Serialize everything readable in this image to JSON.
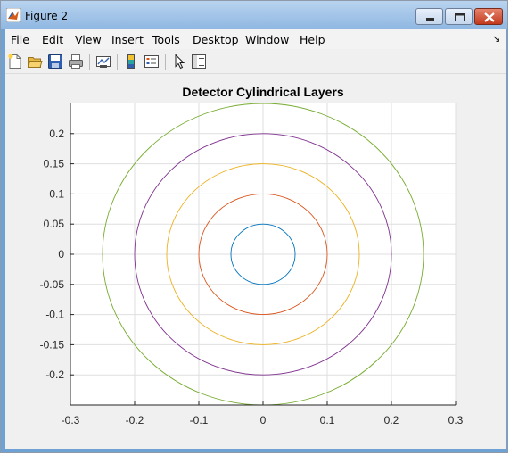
{
  "window": {
    "title": "Figure 2"
  },
  "menu": [
    "File",
    "Edit",
    "View",
    "Insert",
    "Tools",
    "Desktop",
    "Window",
    "Help"
  ],
  "toolbar_icons": [
    "new-figure-icon",
    "open-file-icon",
    "save-icon",
    "print-icon",
    "link-plot-icon",
    "colorbar-icon",
    "legend-icon",
    "pointer-icon",
    "property-editor-icon"
  ],
  "colors": {
    "accent": "#6fa2d4"
  },
  "chart_data": {
    "type": "line",
    "title": "Detector Cylindrical Layers",
    "xlabel": "",
    "ylabel": "",
    "xlim": [
      -0.3,
      0.3
    ],
    "ylim": [
      -0.25,
      0.25
    ],
    "xticks": [
      -0.3,
      -0.2,
      -0.1,
      0,
      0.1,
      0.2,
      0.3
    ],
    "yticks": [
      -0.2,
      -0.15,
      -0.1,
      -0.05,
      0,
      0.05,
      0.1,
      0.15,
      0.2
    ],
    "xtick_labels": [
      "-0.3",
      "-0.2",
      "-0.1",
      "0",
      "0.1",
      "0.2",
      "0.3"
    ],
    "ytick_labels": [
      "-0.2",
      "-0.15",
      "-0.1",
      "-0.05",
      "0",
      "0.05",
      "0.1",
      "0.15",
      "0.2"
    ],
    "grid": true,
    "series": [
      {
        "shape": "circle",
        "center": [
          0,
          0
        ],
        "radius": 0.05,
        "color": "#0072bd"
      },
      {
        "shape": "circle",
        "center": [
          0,
          0
        ],
        "radius": 0.1,
        "color": "#d95319"
      },
      {
        "shape": "circle",
        "center": [
          0,
          0
        ],
        "radius": 0.15,
        "color": "#edb120"
      },
      {
        "shape": "circle",
        "center": [
          0,
          0
        ],
        "radius": 0.2,
        "color": "#7e2f8e"
      },
      {
        "shape": "circle",
        "center": [
          0,
          0
        ],
        "radius": 0.25,
        "color": "#77ac30"
      }
    ]
  }
}
